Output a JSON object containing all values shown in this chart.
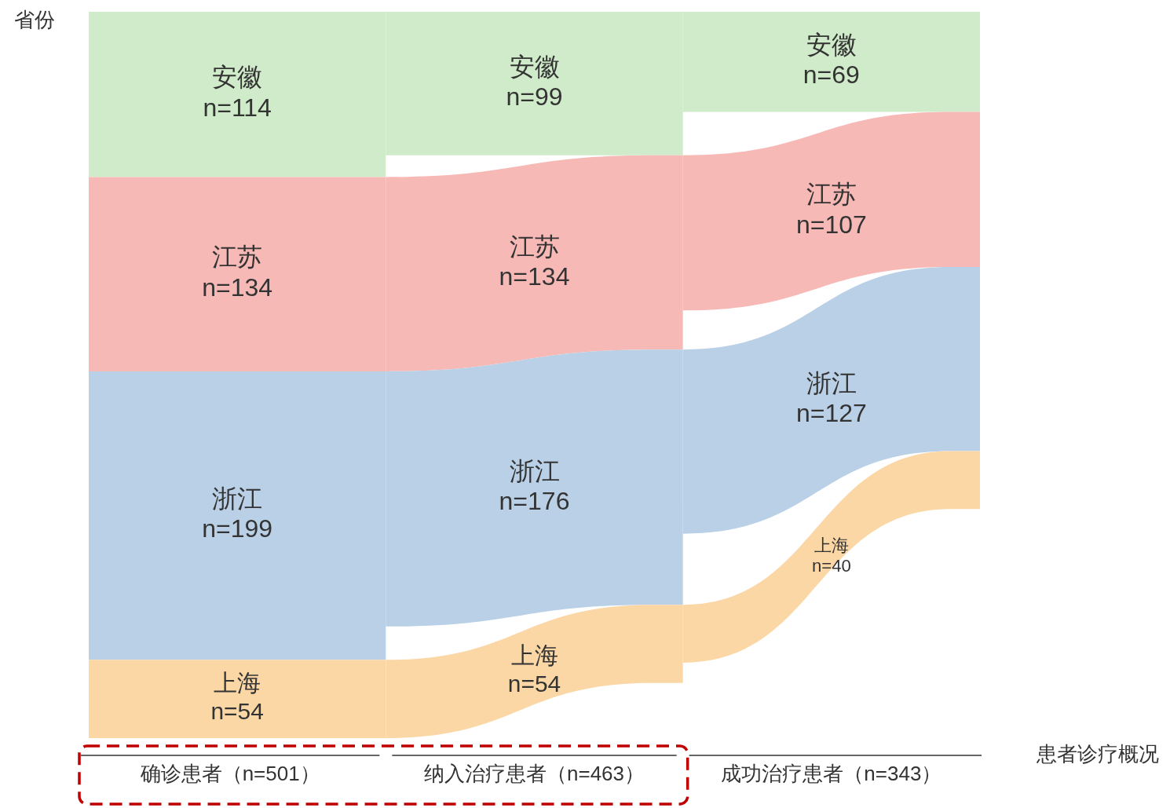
{
  "chart_data": {
    "type": "other",
    "xlabel": "患者诊疗概况",
    "ylabel": "省份",
    "categories": [
      "确诊患者（n=501）",
      "纳入治疗患者（n=463）",
      "成功治疗患者（n=343）"
    ],
    "series": [
      {
        "name": "安徽",
        "color": "#d0ebc9",
        "values": [
          114,
          99,
          69
        ],
        "value_labels": [
          "n=114",
          "n=99",
          "n=69"
        ]
      },
      {
        "name": "江苏",
        "color": "#f7b9b6",
        "values": [
          134,
          134,
          107
        ],
        "value_labels": [
          "n=134",
          "n=134",
          "n=107"
        ]
      },
      {
        "name": "浙江",
        "color": "#b9d0e6",
        "values": [
          199,
          176,
          127
        ],
        "value_labels": [
          "n=199",
          "n=176",
          "n=127"
        ]
      },
      {
        "name": "上海",
        "color": "#fbd7a6",
        "values": [
          54,
          54,
          40
        ],
        "value_labels": [
          "n=54",
          "n=54",
          "n=40"
        ]
      }
    ]
  }
}
